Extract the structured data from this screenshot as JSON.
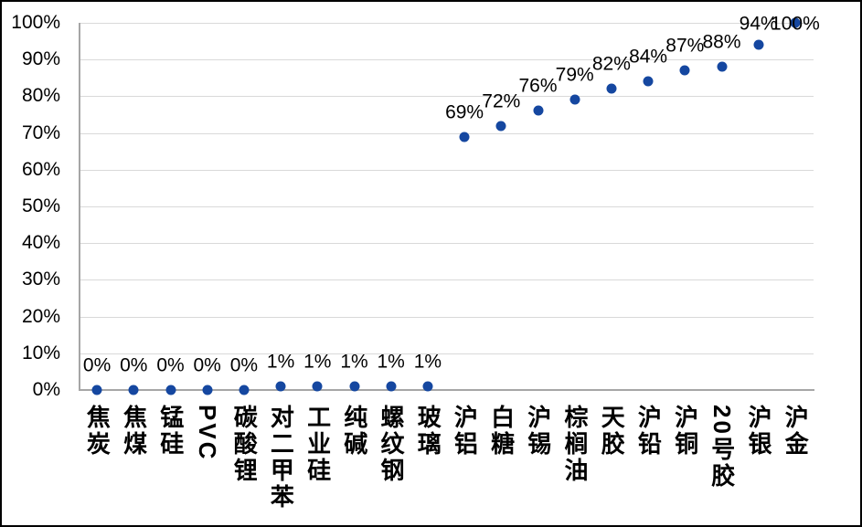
{
  "chart_data": {
    "type": "scatter",
    "title": "",
    "xlabel": "",
    "ylabel": "",
    "categories": [
      "焦炭",
      "焦煤",
      "锰硅",
      "PVC",
      "碳酸锂",
      "对二甲苯",
      "工业硅",
      "纯碱",
      "螺纹钢",
      "玻璃",
      "沪铝",
      "白糖",
      "沪锡",
      "棕榈油",
      "天胶",
      "沪铅",
      "沪铜",
      "20号胶",
      "沪银",
      "沪金"
    ],
    "values": [
      0,
      0,
      0,
      0,
      0,
      1,
      1,
      1,
      1,
      1,
      69,
      72,
      76,
      79,
      82,
      84,
      87,
      88,
      94,
      100
    ],
    "point_labels": [
      "0%",
      "0%",
      "0%",
      "0%",
      "0%",
      "1%",
      "1%",
      "1%",
      "1%",
      "1%",
      "69%",
      "72%",
      "76%",
      "79%",
      "82%",
      "84%",
      "87%",
      "88%",
      "94%",
      "100%"
    ],
    "ylim": [
      0,
      100
    ],
    "ytick_step": 10,
    "ytick_labels": [
      "0%",
      "10%",
      "20%",
      "30%",
      "40%",
      "50%",
      "60%",
      "70%",
      "80%",
      "90%",
      "100%"
    ],
    "grid": true,
    "legend": false
  },
  "colors": {
    "marker": "#1547a0",
    "gridline": "#d9d9d9",
    "axis_line": "#a6a6a6",
    "text": "#000000",
    "background": "#ffffff",
    "border": "#000000"
  }
}
